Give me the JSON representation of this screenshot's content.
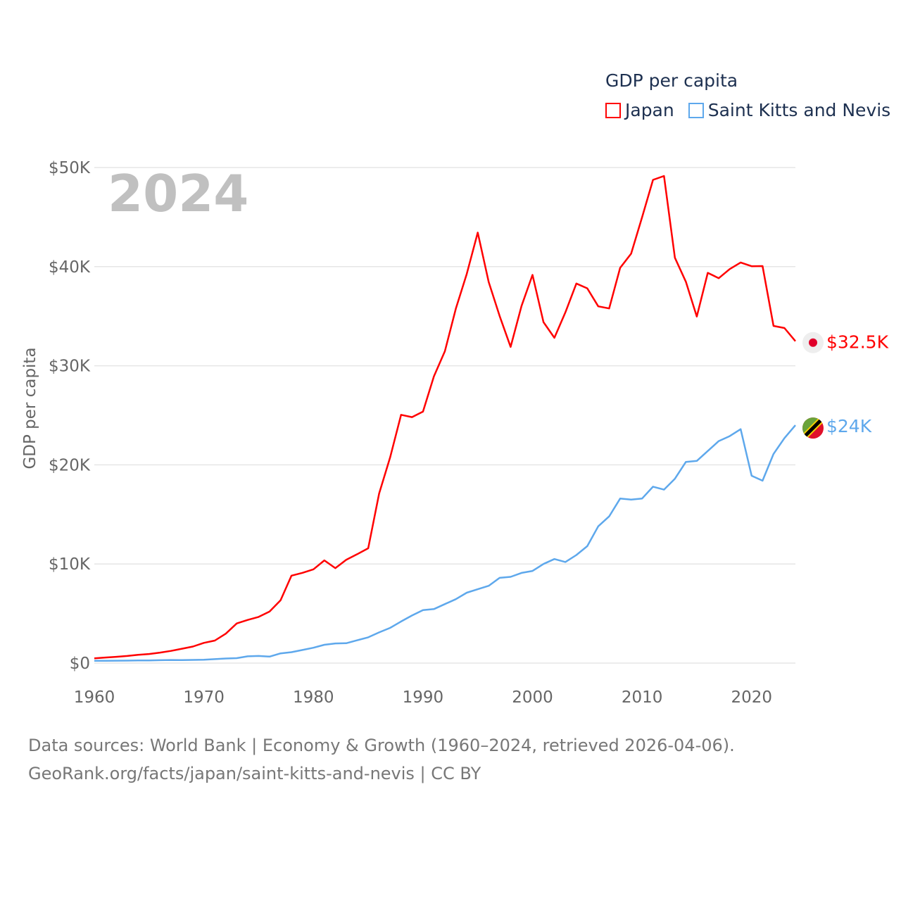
{
  "chart_data": {
    "type": "line",
    "title": "GDP per capita",
    "year_label": "2024",
    "ylabel": "GDP per capita",
    "xlabel": "",
    "xlim": [
      1960,
      2024
    ],
    "ylim": [
      0,
      50000
    ],
    "x_ticks": [
      1960,
      1970,
      1980,
      1990,
      2000,
      2010,
      2020
    ],
    "x_tick_labels": [
      "1960",
      "1970",
      "1980",
      "1990",
      "2000",
      "2010",
      "2020"
    ],
    "y_ticks": [
      0,
      10000,
      20000,
      30000,
      40000,
      50000
    ],
    "y_tick_labels": [
      "$0",
      "$10K",
      "$20K",
      "$30K",
      "$40K",
      "$50K"
    ],
    "grid": true,
    "legend_position": "top-right",
    "series": [
      {
        "name": "Japan",
        "color": "#ff0000",
        "end_label": "$32.5K",
        "values": [
          479,
          564,
          634,
          717,
          835,
          919,
          1058,
          1229,
          1451,
          1669,
          2037,
          2272,
          2967,
          3997,
          4354,
          4659,
          5197,
          6335,
          8821,
          9105,
          9463,
          10361,
          9578,
          10425,
          10985,
          11584,
          17112,
          20745,
          25052,
          24813,
          25371,
          28925,
          31465,
          35766,
          39269,
          43440,
          38437,
          35022,
          31903,
          36027,
          39169,
          34406,
          32821,
          35387,
          38299,
          37813,
          35991,
          35779,
          39876,
          41309,
          44968,
          48760,
          49145,
          40898,
          38475,
          34961,
          39375,
          38834,
          39751,
          40416,
          40041,
          40059,
          34017,
          33806,
          32476
        ]
      },
      {
        "name": "Saint Kitts and Nevis",
        "color": "#5ea8ec",
        "end_label": "$24K",
        "values": [
          230,
          235,
          240,
          250,
          260,
          270,
          290,
          310,
          300,
          320,
          340,
          400,
          460,
          500,
          680,
          720,
          650,
          980,
          1100,
          1320,
          1550,
          1850,
          1980,
          2000,
          2300,
          2600,
          3100,
          3550,
          4200,
          4800,
          5350,
          5450,
          5950,
          6450,
          7100,
          7450,
          7800,
          8600,
          8700,
          9100,
          9300,
          10000,
          10500,
          10200,
          10900,
          11800,
          13800,
          14800,
          16600,
          16500,
          16600,
          17800,
          17500,
          18600,
          20300,
          20400,
          21400,
          22400,
          22900,
          23600,
          18900,
          18400,
          21100,
          22700,
          24000
        ]
      }
    ]
  },
  "footer": {
    "line1": "Data sources: World Bank | Economy & Growth (1960–2024, retrieved 2026-04-06).",
    "line2": "GeoRank.org/facts/japan/saint-kitts-and-nevis | CC BY"
  }
}
